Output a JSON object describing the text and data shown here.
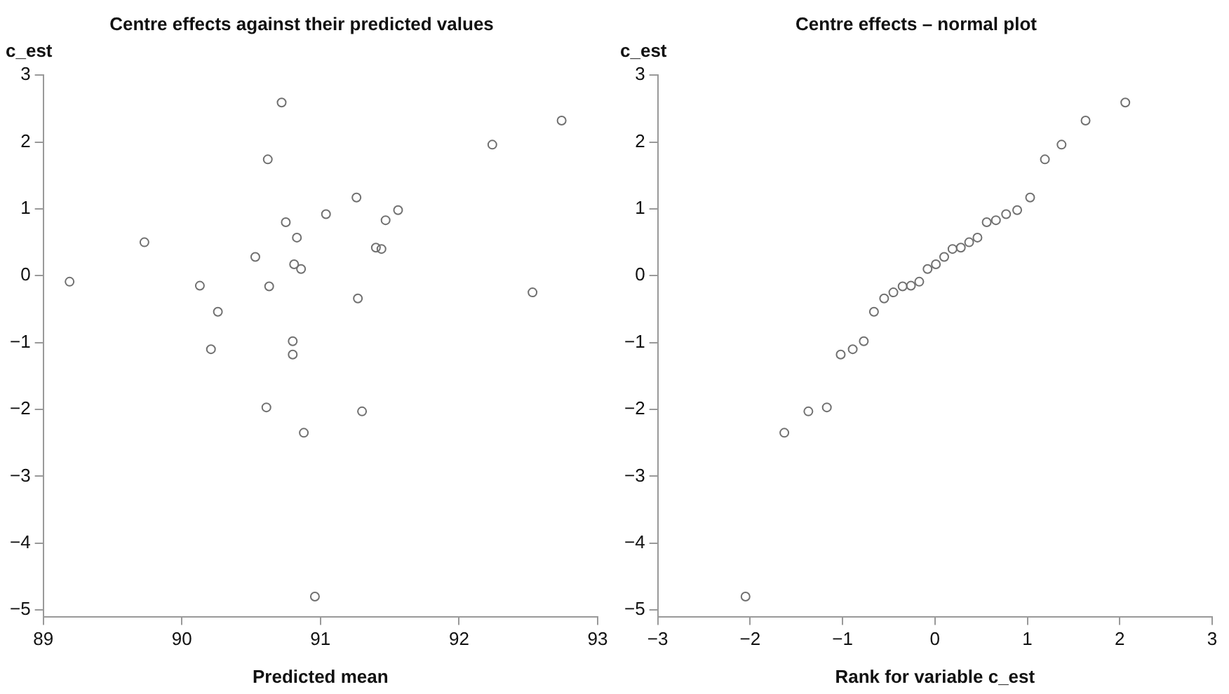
{
  "chart_data": [
    {
      "type": "scatter",
      "title": "Centre effects against their predicted values",
      "xlabel": "Predicted mean",
      "ylabel": "c_est",
      "xlim": [
        89,
        93
      ],
      "xticks": [
        89,
        90,
        91,
        92,
        93
      ],
      "ylim": [
        -5.1,
        3
      ],
      "yticks": [
        {
          "value": -5,
          "label": "−5"
        },
        {
          "value": -4,
          "label": "−4"
        },
        {
          "value": -3,
          "label": "−3"
        },
        {
          "value": -2,
          "label": "−2"
        },
        {
          "value": -1,
          "label": "−1"
        },
        0,
        1,
        2,
        3
      ],
      "grid": false,
      "legend": false,
      "marker": "circle",
      "series": [
        {
          "color": "#707070",
          "x": [
            89.19,
            89.73,
            90.13,
            90.26,
            90.21,
            90.53,
            90.62,
            90.63,
            90.72,
            90.75,
            90.83,
            90.81,
            90.86,
            90.8,
            90.8,
            91.04,
            91.26,
            91.27,
            91.4,
            91.44,
            91.47,
            91.56,
            92.24,
            92.74,
            92.53,
            90.61,
            90.88,
            91.3,
            90.96
          ],
          "values": [
            -0.09,
            0.5,
            -0.15,
            -0.54,
            -1.1,
            0.28,
            1.74,
            -0.16,
            2.59,
            0.8,
            0.57,
            0.17,
            0.1,
            -0.98,
            -1.18,
            0.92,
            1.17,
            -0.34,
            0.42,
            0.4,
            0.83,
            0.98,
            1.96,
            2.32,
            -0.25,
            -1.97,
            -2.35,
            -2.03,
            -4.8
          ]
        }
      ]
    },
    {
      "type": "scatter",
      "title": "Centre effects – normal plot",
      "xlabel": "Rank for variable c_est",
      "ylabel": "c_est",
      "xlim": [
        -3,
        3
      ],
      "xticks": [
        {
          "value": -3,
          "label": "−3"
        },
        {
          "value": -2,
          "label": "−2"
        },
        {
          "value": -1,
          "label": "−1"
        },
        0,
        1,
        2,
        3
      ],
      "ylim": [
        -5.1,
        3
      ],
      "yticks": [
        {
          "value": -5,
          "label": "−5"
        },
        {
          "value": -4,
          "label": "−4"
        },
        {
          "value": -3,
          "label": "−3"
        },
        {
          "value": -2,
          "label": "−2"
        },
        {
          "value": -1,
          "label": "−1"
        },
        0,
        1,
        2,
        3
      ],
      "grid": false,
      "legend": false,
      "marker": "circle",
      "series": [
        {
          "color": "#707070",
          "x": [
            -2.05,
            -1.63,
            -1.37,
            -1.17,
            -1.02,
            -0.89,
            -0.77,
            -0.66,
            -0.55,
            -0.45,
            -0.35,
            -0.26,
            -0.17,
            -0.08,
            0.01,
            0.1,
            0.19,
            0.28,
            0.37,
            0.46,
            0.56,
            0.66,
            0.77,
            0.89,
            1.03,
            1.19,
            1.37,
            1.63,
            2.06
          ],
          "values": [
            -4.8,
            -2.35,
            -2.03,
            -1.97,
            -1.18,
            -1.1,
            -0.98,
            -0.54,
            -0.34,
            -0.25,
            -0.16,
            -0.15,
            -0.09,
            0.1,
            0.17,
            0.28,
            0.4,
            0.42,
            0.5,
            0.57,
            0.8,
            0.83,
            0.92,
            0.98,
            1.17,
            1.74,
            1.96,
            2.32,
            2.59
          ]
        }
      ]
    }
  ]
}
